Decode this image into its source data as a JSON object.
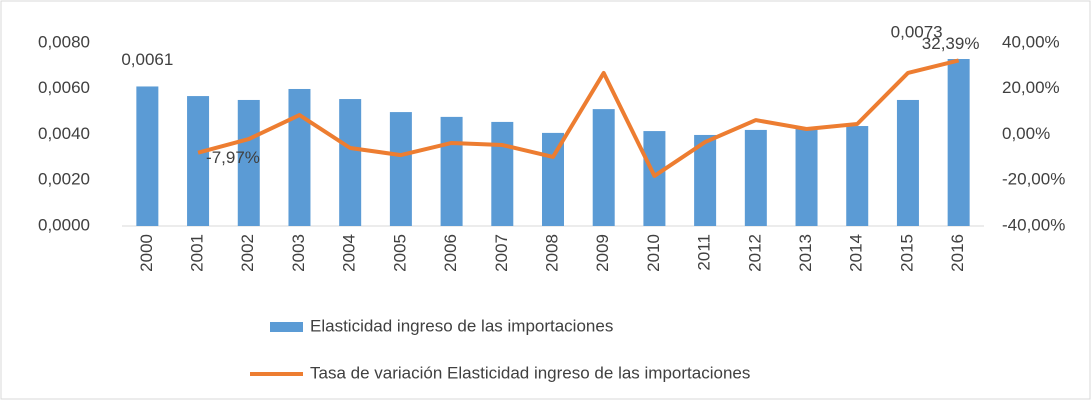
{
  "chart_data": {
    "type": "bar+line",
    "categories": [
      "2000",
      "2001",
      "2002",
      "2003",
      "2004",
      "2005",
      "2006",
      "2007",
      "2008",
      "2009",
      "2010",
      "2011",
      "2012",
      "2013",
      "2014",
      "2015",
      "2016"
    ],
    "series": [
      {
        "name": "Elasticidad ingreso de las importaciones",
        "type": "bar",
        "color": "#5b9bd5",
        "values": [
          0.0061,
          0.00568,
          0.00551,
          0.00599,
          0.00555,
          0.00498,
          0.00477,
          0.00455,
          0.00407,
          0.00511,
          0.00415,
          0.00398,
          0.0042,
          0.0043,
          0.00437,
          0.00551,
          0.0073
        ],
        "value_labels": [
          "0,0061",
          null,
          null,
          null,
          null,
          null,
          null,
          null,
          null,
          null,
          null,
          null,
          null,
          null,
          null,
          null,
          "0,0073"
        ]
      },
      {
        "name": "Tasa de variación Elasticidad ingreso de las importaciones",
        "type": "line",
        "axis": "y2",
        "color": "#ed7d31",
        "values": [
          null,
          -7.97,
          -2,
          8.5,
          -5.9,
          -9,
          -3.7,
          -4.6,
          -9.8,
          26.9,
          -18.1,
          -3.3,
          6.3,
          2.4,
          4.6,
          26.9,
          32.39
        ],
        "value_labels": [
          null,
          "-7,97%",
          null,
          null,
          null,
          null,
          null,
          null,
          null,
          null,
          null,
          null,
          null,
          null,
          null,
          null,
          "32,39%"
        ]
      }
    ],
    "ylim": [
      0,
      0.008
    ],
    "yticks": [
      {
        "value": 0,
        "label": "0,0000"
      },
      {
        "value": 0.002,
        "label": "0,0020"
      },
      {
        "value": 0.004,
        "label": "0,0040"
      },
      {
        "value": 0.006,
        "label": "0,0060"
      },
      {
        "value": 0.008,
        "label": "0,0080"
      }
    ],
    "y2lim": [
      -40,
      40
    ],
    "y2ticks": [
      {
        "value": -40,
        "label": "-40,00%"
      },
      {
        "value": -20,
        "label": "-20,00%"
      },
      {
        "value": 0,
        "label": "0,00%"
      },
      {
        "value": 20,
        "label": "20,00%"
      },
      {
        "value": 40,
        "label": "40,00%"
      }
    ],
    "legend": "bottom"
  }
}
